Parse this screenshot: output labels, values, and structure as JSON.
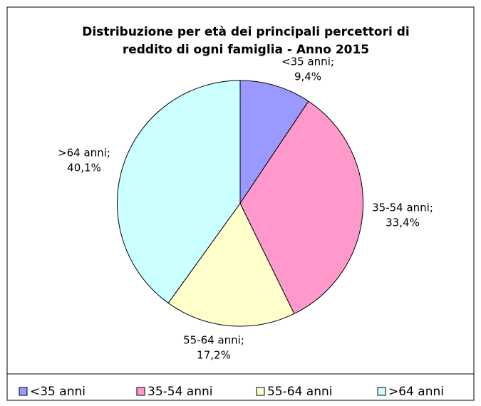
{
  "chart_data": {
    "type": "pie",
    "title": [
      "Distribuzione per età dei principali percettori di",
      "reddito di ogni famiglia - Anno 2015"
    ],
    "categories": [
      "<35 anni",
      "35-54 anni",
      "55-64 anni",
      ">64 anni"
    ],
    "values": [
      9.4,
      33.4,
      17.2,
      40.1
    ],
    "value_labels": [
      [
        "<35 anni;",
        "9,4%"
      ],
      [
        "35-54 anni;",
        "33,4%"
      ],
      [
        "55-64 anni;",
        "17,2%"
      ],
      [
        ">64 anni;",
        "40,1%"
      ]
    ],
    "colors": [
      "#9999ff",
      "#ff99cc",
      "#ffffcc",
      "#ccffff"
    ],
    "legend": "bottom"
  }
}
